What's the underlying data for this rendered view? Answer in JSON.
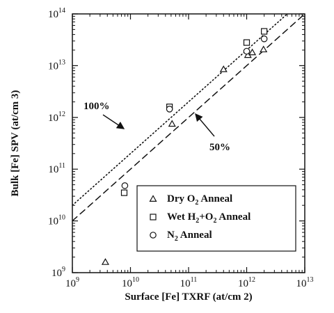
{
  "chart_data": {
    "type": "scatter",
    "title": "",
    "xlabel": "Surface [Fe] TXRF (at/cm 2)",
    "ylabel": "Bulk [Fe] SPV (at/cm 3)",
    "xscale": "log",
    "yscale": "log",
    "xlim": [
      1000000000.0,
      10000000000000.0
    ],
    "ylim": [
      1000000000.0,
      100000000000000.0
    ],
    "x_ticks": [
      {
        "base": "10",
        "exp": "9"
      },
      {
        "base": "10",
        "exp": "10"
      },
      {
        "base": "10",
        "exp": "11"
      },
      {
        "base": "10",
        "exp": "12"
      },
      {
        "base": "10",
        "exp": "13"
      }
    ],
    "y_ticks": [
      {
        "base": "10",
        "exp": "9"
      },
      {
        "base": "10",
        "exp": "10"
      },
      {
        "base": "10",
        "exp": "11"
      },
      {
        "base": "10",
        "exp": "12"
      },
      {
        "base": "10",
        "exp": "13"
      },
      {
        "base": "10",
        "exp": "14"
      }
    ],
    "grid": false,
    "legend_position": "bottom-right",
    "series": [
      {
        "name": "Dry O2 Anneal",
        "label_parts": [
          "Dry O",
          "2",
          " Anneal"
        ],
        "marker": "triangle",
        "points": [
          {
            "x": 3700000000.0,
            "y": 1600000000.0
          },
          {
            "x": 52000000000.0,
            "y": 750000000000.0
          },
          {
            "x": 400000000000.0,
            "y": 8500000000000.0
          },
          {
            "x": 1050000000000.0,
            "y": 16000000000000.0
          },
          {
            "x": 1250000000000.0,
            "y": 18000000000000.0
          },
          {
            "x": 1950000000000.0,
            "y": 20500000000000.0
          }
        ]
      },
      {
        "name": "Wet H2+O2 Anneal",
        "label_parts": [
          "Wet H",
          "2",
          "+O",
          "2",
          " Anneal"
        ],
        "marker": "square",
        "points": [
          {
            "x": 7800000000.0,
            "y": 35000000000.0
          },
          {
            "x": 47000000000.0,
            "y": 1600000000000.0
          },
          {
            "x": 1000000000000.0,
            "y": 28000000000000.0
          },
          {
            "x": 2000000000000.0,
            "y": 46000000000000.0
          }
        ]
      },
      {
        "name": "N2 Anneal",
        "label_parts": [
          "N",
          "2",
          " Anneal"
        ],
        "marker": "circle",
        "points": [
          {
            "x": 8000000000.0,
            "y": 48000000000.0
          },
          {
            "x": 47000000000.0,
            "y": 1450000000000.0
          },
          {
            "x": 1000000000000.0,
            "y": 19000000000000.0
          },
          {
            "x": 2000000000000.0,
            "y": 33000000000000.0
          }
        ]
      }
    ],
    "reference_lines": [
      {
        "label": "100%",
        "style": "dotted",
        "x": [
          1000000000.0,
          10000000000000.0
        ],
        "y": [
          20000000000.0,
          200000000000000.0
        ]
      },
      {
        "label": "50%",
        "style": "dashed",
        "x": [
          1000000000.0,
          10000000000000.0
        ],
        "y": [
          10000000000.0,
          100000000000000.0
        ]
      }
    ],
    "annotations": [
      {
        "text": "100%",
        "target_line": "100%"
      },
      {
        "text": "50%",
        "target_line": "50%"
      }
    ]
  }
}
